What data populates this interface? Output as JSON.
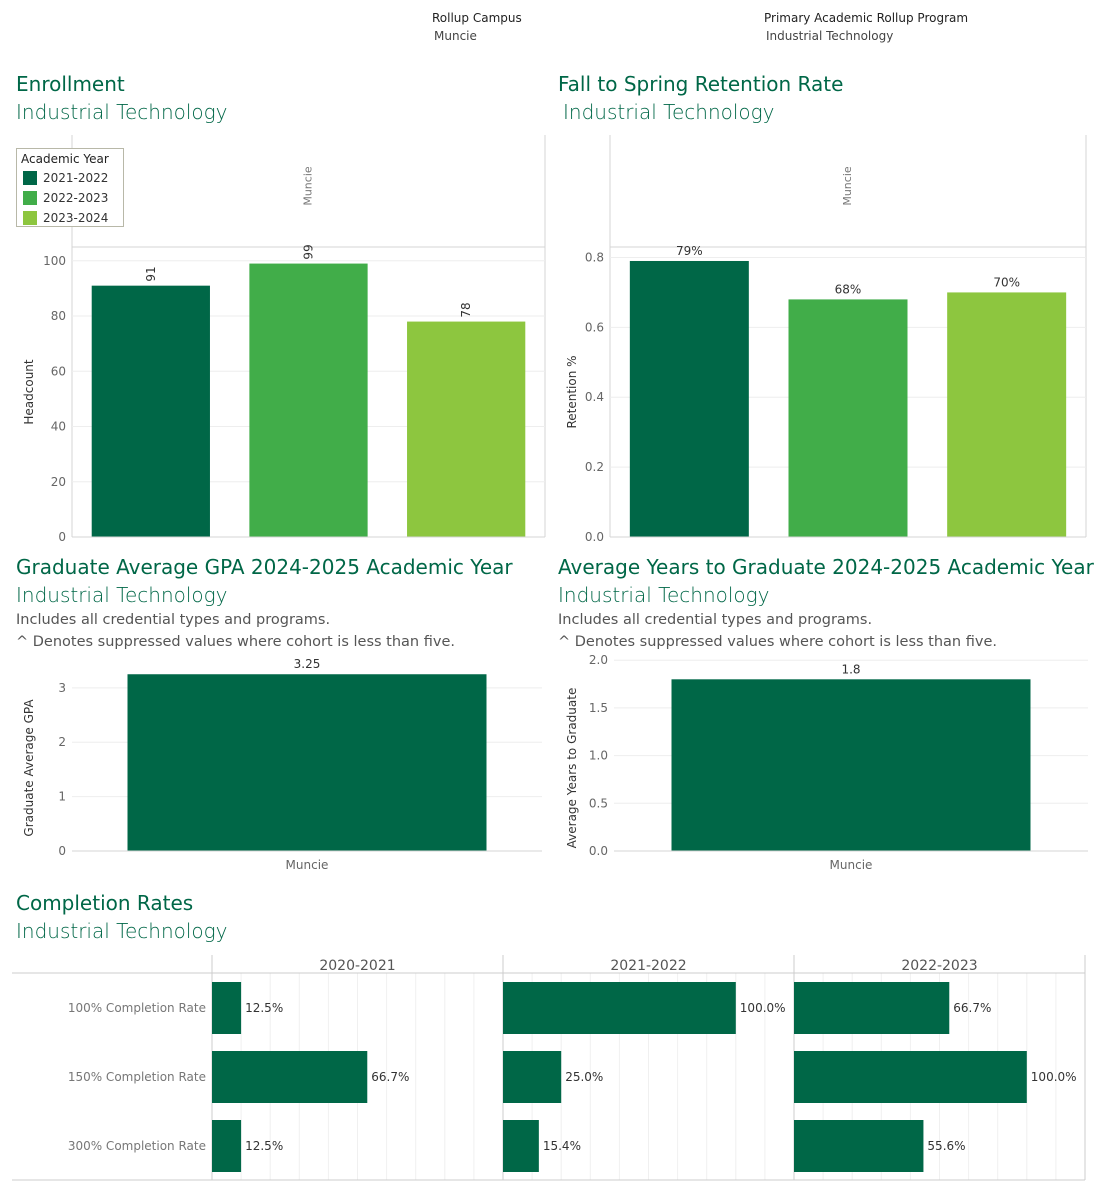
{
  "filters": {
    "campus_label": "Rollup Campus",
    "campus_value": "Muncie",
    "program_label": "Primary Academic Rollup Program",
    "program_value": "Industrial Technology"
  },
  "colors": {
    "dark": "#006747",
    "mid": "#41ad49",
    "light": "#8dc63f",
    "title": "#006747"
  },
  "enrollment": {
    "title": "Enrollment",
    "subtitle": "Industrial Technology",
    "chart_data": {
      "type": "bar",
      "panel_label": "Muncie",
      "categories": [
        "2021-2022",
        "2022-2023",
        "2023-2024"
      ],
      "values": [
        91,
        99,
        78
      ],
      "value_labels": [
        "91",
        "99",
        "78"
      ],
      "ylabel": "Headcount",
      "ylim": [
        0,
        105
      ],
      "yticks": [
        0,
        20,
        40,
        60,
        80,
        100
      ],
      "legend_title": "Academic Year",
      "legend_placement": "top-left"
    }
  },
  "retention": {
    "title": "Fall to Spring Retention Rate",
    "subtitle": "Industrial Technology",
    "chart_data": {
      "type": "bar",
      "panel_label": "Muncie",
      "categories": [
        "2021-2022",
        "2022-2023",
        "2023-2024"
      ],
      "values": [
        0.79,
        0.68,
        0.7
      ],
      "value_labels": [
        "79%",
        "68%",
        "70%"
      ],
      "ylabel": "Retention %",
      "ylim": [
        0,
        0.83
      ],
      "yticks": [
        0.0,
        0.2,
        0.4,
        0.6,
        0.8
      ],
      "ytick_labels": [
        "0.0",
        "0.2",
        "0.4",
        "0.6",
        "0.8"
      ]
    }
  },
  "gpa": {
    "title": "Graduate Average GPA 2024-2025 Academic Year",
    "subtitle": "Industrial Technology",
    "note1": "Includes all credential types and programs.",
    "note2": "^ Denotes suppressed values where cohort is less than five.",
    "chart_data": {
      "type": "bar",
      "categories": [
        "Muncie"
      ],
      "values": [
        3.25
      ],
      "value_labels": [
        "3.25"
      ],
      "ylabel": "Graduate Average GPA",
      "ylim": [
        0,
        3.42
      ],
      "yticks": [
        0,
        1,
        2,
        3
      ],
      "ytick_labels": [
        "0",
        "1",
        "2",
        "3"
      ]
    }
  },
  "years": {
    "title": "Average Years to Graduate 2024-2025 Academic Year",
    "subtitle": "Industrial Technology",
    "note1": "Includes all credential types and programs.",
    "note2": "^ Denotes suppressed values where cohort is less than five.",
    "chart_data": {
      "type": "bar",
      "categories": [
        "Muncie"
      ],
      "values": [
        1.8
      ],
      "value_labels": [
        "1.8"
      ],
      "ylabel": "Average Years to Graduate",
      "ylim": [
        0,
        1.95
      ],
      "yticks": [
        0.0,
        0.5,
        1.0,
        1.5,
        2.0
      ],
      "ytick_labels": [
        "0.0",
        "0.5",
        "1.0",
        "1.5",
        "2.0"
      ]
    }
  },
  "completion": {
    "title": "Completion Rates",
    "subtitle": "Industrial Technology",
    "chart_data": {
      "type": "bar",
      "orientation": "horizontal",
      "columns": [
        "2020-2021",
        "2021-2022",
        "2022-2023"
      ],
      "rows": [
        "100% Completion Rate",
        "150% Completion Rate",
        "300% Completion Rate"
      ],
      "xlim": [
        0,
        1.25
      ],
      "series": [
        {
          "name": "2020-2021",
          "values": [
            0.125,
            0.667,
            0.125
          ],
          "value_labels": [
            "12.5%",
            "66.7%",
            "12.5%"
          ]
        },
        {
          "name": "2021-2022",
          "values": [
            1.0,
            0.25,
            0.154
          ],
          "value_labels": [
            "100.0%",
            "25.0%",
            "15.4%"
          ]
        },
        {
          "name": "2022-2023",
          "values": [
            0.667,
            1.0,
            0.556
          ],
          "value_labels": [
            "66.7%",
            "100.0%",
            "55.6%"
          ]
        }
      ]
    }
  }
}
